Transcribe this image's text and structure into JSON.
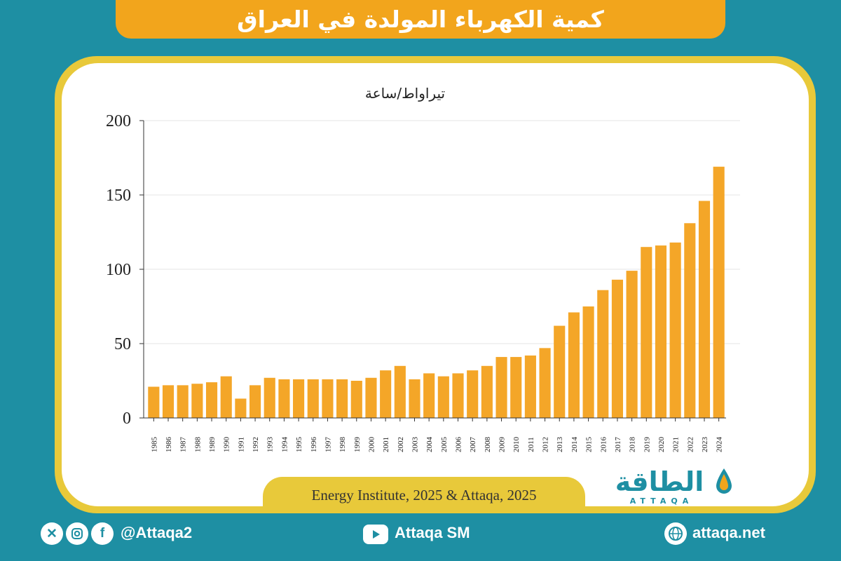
{
  "title": "كمية الكهرباء المولدة في العراق",
  "source": "Energy Institute, 2025 & Attaqa, 2025",
  "logo": {
    "arabic": "الطاقة",
    "english": "ATTAQA"
  },
  "footer": {
    "social_handle": "@Attaqa2",
    "youtube_label": "Attaqa SM",
    "website": "attaqa.net",
    "icons": [
      "x-icon",
      "instagram-icon",
      "facebook-icon",
      "youtube-icon",
      "globe-icon"
    ]
  },
  "colors": {
    "bar": "#f4a628",
    "teal": "#1e8fa3",
    "title_bg": "#f2a51c",
    "border": "#e8c93a"
  },
  "chart_data": {
    "type": "bar",
    "ylabel": "تيراواط/ساعة",
    "ylim": [
      0,
      200
    ],
    "yticks": [
      0,
      50,
      100,
      150,
      200
    ],
    "grid": true,
    "categories": [
      "1985",
      "1986",
      "1987",
      "1988",
      "1989",
      "1990",
      "1991",
      "1992",
      "1993",
      "1994",
      "1995",
      "1996",
      "1997",
      "1998",
      "1999",
      "2000",
      "2001",
      "2002",
      "2003",
      "2004",
      "2005",
      "2006",
      "2007",
      "2008",
      "2009",
      "2010",
      "2011",
      "2012",
      "2013",
      "2014",
      "2015",
      "2016",
      "2017",
      "2018",
      "2019",
      "2020",
      "2021",
      "2022",
      "2023",
      "2024"
    ],
    "values": [
      21,
      22,
      22,
      23,
      24,
      28,
      13,
      22,
      27,
      26,
      26,
      26,
      26,
      26,
      25,
      27,
      32,
      35,
      26,
      30,
      28,
      30,
      32,
      35,
      41,
      41,
      42,
      47,
      62,
      71,
      75,
      86,
      93,
      99,
      115,
      116,
      118,
      131,
      146,
      169
    ]
  }
}
